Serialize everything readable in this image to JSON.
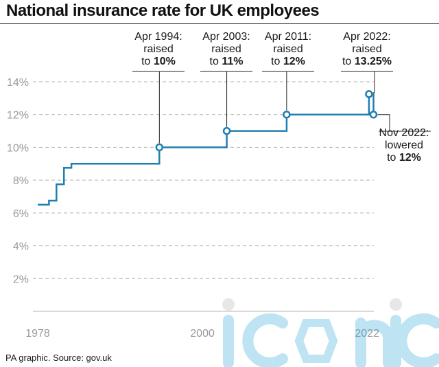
{
  "title": "National insurance rate for UK employees",
  "source": "PA graphic. Source: gov.uk",
  "watermark_text": "iconic",
  "colors": {
    "line": "#1f7fae",
    "grid": "#b3b3b3",
    "axis_text": "#9a9a9a",
    "text": "#1a1a1a"
  },
  "chart_data": {
    "type": "line",
    "step": true,
    "xlim": [
      1978,
      2022.9
    ],
    "ylim": [
      0,
      14
    ],
    "yticks": [
      2,
      4,
      6,
      8,
      10,
      12,
      14
    ],
    "ytick_labels": [
      "2%",
      "4%",
      "6%",
      "8%",
      "10%",
      "12%",
      "14%"
    ],
    "xticks": [
      1978,
      2000,
      2022
    ],
    "xtick_labels": [
      "1978",
      "2000",
      "2022"
    ],
    "grid": true,
    "series": [
      {
        "points": [
          [
            1978,
            6.5
          ],
          [
            1979.5,
            6.5
          ],
          [
            1979.5,
            6.75
          ],
          [
            1980.5,
            6.75
          ],
          [
            1980.5,
            7.75
          ],
          [
            1981.5,
            7.75
          ],
          [
            1981.5,
            8.75
          ],
          [
            1982.5,
            8.75
          ],
          [
            1982.5,
            9.0
          ],
          [
            1994.25,
            9.0
          ],
          [
            1994.25,
            10.0
          ],
          [
            2003.25,
            10.0
          ],
          [
            2003.25,
            11.0
          ],
          [
            2011.25,
            11.0
          ],
          [
            2011.25,
            12.0
          ],
          [
            2022.25,
            12.0
          ],
          [
            2022.25,
            13.25
          ],
          [
            2022.85,
            13.25
          ],
          [
            2022.85,
            12.0
          ]
        ]
      }
    ],
    "markers": [
      {
        "x": 1994.25,
        "y": 10
      },
      {
        "x": 2003.25,
        "y": 11
      },
      {
        "x": 2011.25,
        "y": 12
      },
      {
        "x": 2022.25,
        "y": 13.25
      },
      {
        "x": 2022.85,
        "y": 12
      }
    ],
    "annotations": [
      {
        "lines": [
          "Apr 1994:",
          "raised",
          "to "
        ],
        "bold": "10%"
      },
      {
        "lines": [
          "Apr 2003:",
          "raised",
          "to "
        ],
        "bold": "11%"
      },
      {
        "lines": [
          "Apr 2011:",
          "raised",
          "to "
        ],
        "bold": "12%"
      },
      {
        "lines": [
          "Apr 2022:",
          "raised",
          "to "
        ],
        "bold": "13.25%"
      },
      {
        "lines": [
          "Nov 2022:",
          "lowered",
          "to "
        ],
        "bold": "12%"
      }
    ]
  }
}
